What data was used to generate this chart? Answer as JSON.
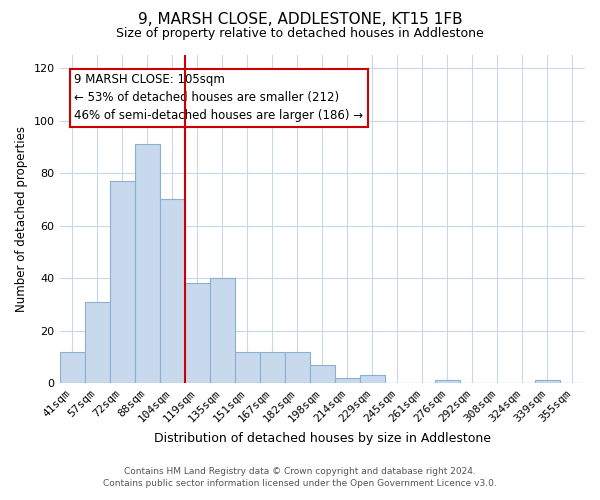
{
  "title": "9, MARSH CLOSE, ADDLESTONE, KT15 1FB",
  "subtitle": "Size of property relative to detached houses in Addlestone",
  "xlabel": "Distribution of detached houses by size in Addlestone",
  "ylabel": "Number of detached properties",
  "categories": [
    "41sqm",
    "57sqm",
    "72sqm",
    "88sqm",
    "104sqm",
    "119sqm",
    "135sqm",
    "151sqm",
    "167sqm",
    "182sqm",
    "198sqm",
    "214sqm",
    "229sqm",
    "245sqm",
    "261sqm",
    "276sqm",
    "292sqm",
    "308sqm",
    "324sqm",
    "339sqm",
    "355sqm"
  ],
  "values": [
    12,
    31,
    77,
    91,
    70,
    38,
    40,
    12,
    12,
    12,
    7,
    2,
    3,
    0,
    0,
    1,
    0,
    0,
    0,
    1,
    0
  ],
  "bar_color": "#c8d9ed",
  "bar_edge_color": "#8ab0cf",
  "vline_index": 4,
  "vline_color": "#cc0000",
  "ylim": [
    0,
    125
  ],
  "yticks": [
    0,
    20,
    40,
    60,
    80,
    100,
    120
  ],
  "annotation_line1": "9 MARSH CLOSE: 105sqm",
  "annotation_line2": "← 53% of detached houses are smaller (212)",
  "annotation_line3": "46% of semi-detached houses are larger (186) →",
  "footer_text": "Contains HM Land Registry data © Crown copyright and database right 2024.\nContains public sector information licensed under the Open Government Licence v3.0.",
  "background_color": "#ffffff",
  "grid_color": "#c8d8e8"
}
